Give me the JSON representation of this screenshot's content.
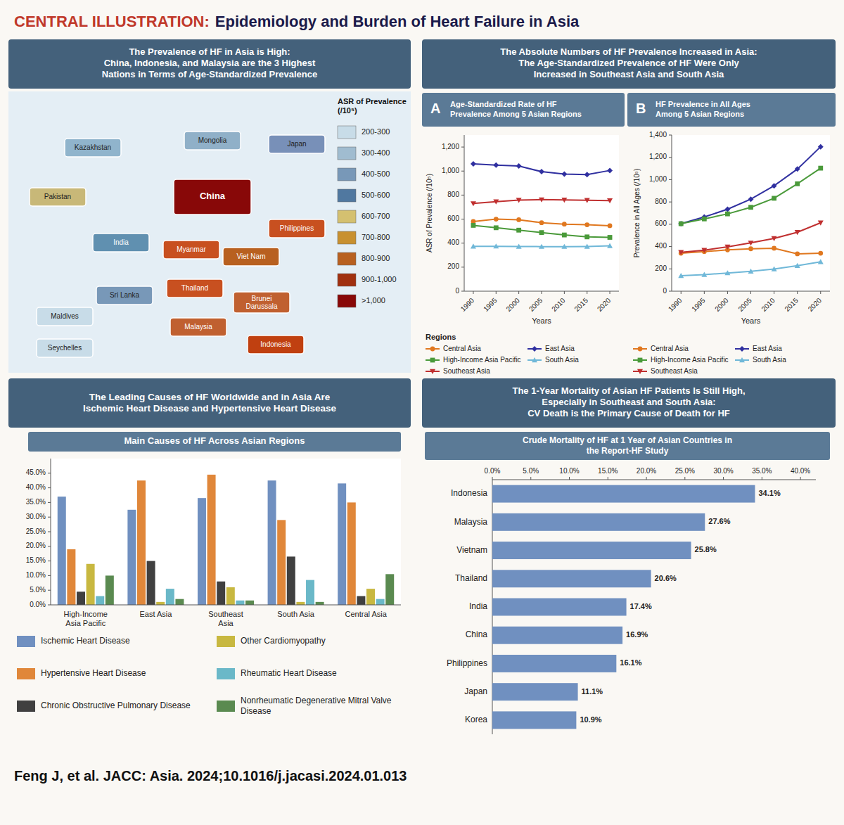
{
  "title": "CENTRAL ILLUSTRATION:",
  "subtitle": "Epidemiology and Burden of Heart Failure in Asia",
  "annotations": [
    "The Prevalence of HF in Asia is High:\nChina, Indonesia, and Malaysia are the 3 Highest\nNations in Terms of Age-Standardized Prevalence",
    "The Absolute Numbers of HF Prevalence Increased in Asia:\nThe Age-Standardized Prevalence of HF Were Only\nIncreased in Southeast Asia and South Asia",
    "The Leading Causes of HF Worldwide and in Asia Are\nIschemic Heart Disease and Hypertensive Heart Disease",
    "The 1-Year Mortality of Asian HF Patients Is Still High,\nEspecially in Southeast and South Asia:\nCV Death is the Primary Cause of Death for HF",
    "Feng J, et al. JACC: Asia. 2024;10.1016/j.jacasi.2024.01.013"
  ],
  "chart_data": [
    {
      "type": "map",
      "title": "ASR of Prevalence\n(/10⁵)",
      "categories": [
        "Kazakhstan",
        "Mongolia",
        "China",
        "India",
        "Pakistan",
        "Myanmar",
        "Thailand",
        "Viet Nam",
        "Philippines",
        "Sri Lanka",
        "Japan",
        "Malaysia",
        "Indonesia",
        "Brunei\nDarussala",
        "Seychelles",
        "Maldives"
      ],
      "colors": [
        "#90b4cc",
        "#90b0c8",
        "#880808",
        "#6090b0",
        "#c8b878",
        "#c85020",
        "#c85020",
        "#b86020",
        "#c85020",
        "#7898b8",
        "#7890b8",
        "#c06030",
        "#c04010",
        "#c06030",
        "#c8dce8",
        "#c8dce8"
      ],
      "series": [
        {
          "name": "200-300",
          "color": "#c8dce8"
        },
        {
          "name": "300-400",
          "color": "#a0bcd0"
        },
        {
          "name": "400-500",
          "color": "#7898b8"
        },
        {
          "name": "500-600",
          "color": "#5078a0"
        },
        {
          "name": "600-700",
          "color": "#d4c070"
        },
        {
          "name": "700-800",
          "color": "#c89030"
        },
        {
          "name": "800-900",
          "color": "#b86020"
        },
        {
          "name": "900-1,000",
          "color": "#a03010"
        },
        {
          "name": ">1,000",
          "color": "#880808"
        }
      ]
    },
    {
      "type": "line",
      "title": "Age-Standardized Rate of HF\nPrevalence Among 5 Asian Regions",
      "annotations": [
        "A",
        "Regions"
      ],
      "x": [
        1990,
        1995,
        2000,
        2005,
        2010,
        2015,
        2020
      ],
      "xlabel": "Years",
      "ylabel": "ASR of Prevalence (/10⁵)",
      "xlim": [
        1988,
        2022
      ],
      "xticks": [
        1990,
        1995,
        2000,
        2005,
        2010,
        2015,
        2020
      ],
      "ylim": [
        0,
        1300
      ],
      "yticks": [
        0,
        200,
        400,
        600,
        800,
        {
          "value": 1000,
          "label": "1,000"
        },
        {
          "value": 1200,
          "label": "1,200"
        }
      ],
      "grid": false,
      "series": [
        {
          "name": "Central Asia",
          "color": "#e07820",
          "marker": "circle",
          "values": [
            580,
            600,
            595,
            570,
            558,
            553,
            545
          ]
        },
        {
          "name": "East Asia",
          "color": "#3030a0",
          "marker": "diamond",
          "values": [
            1060,
            1050,
            1042,
            995,
            975,
            970,
            1005
          ]
        },
        {
          "name": "High-Income Asia Pacific",
          "color": "#4a9a3a",
          "marker": "square",
          "values": [
            548,
            528,
            508,
            488,
            468,
            452,
            448
          ]
        },
        {
          "name": "South Asia",
          "color": "#70b8d8",
          "marker": "triangle-up",
          "values": [
            373,
            374,
            372,
            371,
            371,
            372,
            377
          ]
        },
        {
          "name": "Southeast Asia",
          "color": "#c03030",
          "marker": "triangle-down",
          "values": [
            730,
            745,
            758,
            762,
            760,
            757,
            754
          ]
        }
      ]
    },
    {
      "type": "line",
      "title": "HF Prevalence in All Ages\nAmong 5 Asian Regions",
      "annotations": [
        "B"
      ],
      "x": [
        1990,
        1995,
        2000,
        2005,
        2010,
        2015,
        2020
      ],
      "xlabel": "Years",
      "ylabel": "Prevalence in All Ages (/10⁵)",
      "xlim": [
        1988,
        2022
      ],
      "xticks": [
        1990,
        1995,
        2000,
        2005,
        2010,
        2015,
        2020
      ],
      "ylim": [
        0,
        1400
      ],
      "yticks": [
        0,
        200,
        400,
        600,
        800,
        {
          "value": 1000,
          "label": "1,000"
        },
        {
          "value": 1200,
          "label": "1,200"
        },
        {
          "value": 1400,
          "label": "1,400"
        }
      ],
      "grid": false,
      "series": [
        {
          "name": "Central Asia",
          "color": "#e07820",
          "marker": "circle",
          "values": [
            340,
            355,
            370,
            380,
            385,
            335,
            340
          ]
        },
        {
          "name": "East Asia",
          "color": "#3030a0",
          "marker": "diamond",
          "values": [
            605,
            665,
            735,
            825,
            945,
            1095,
            1295
          ]
        },
        {
          "name": "High-Income Asia Pacific",
          "color": "#4a9a3a",
          "marker": "square",
          "values": [
            605,
            648,
            693,
            752,
            833,
            963,
            1103
          ]
        },
        {
          "name": "South Asia",
          "color": "#70b8d8",
          "marker": "triangle-up",
          "values": [
            138,
            148,
            163,
            178,
            198,
            228,
            263
          ]
        },
        {
          "name": "Southeast Asia",
          "color": "#c03030",
          "marker": "triangle-down",
          "values": [
            348,
            368,
            398,
            433,
            473,
            528,
            613
          ]
        }
      ]
    },
    {
      "type": "bar",
      "title": "Main Causes of HF Across Asian Regions",
      "categories": [
        "High-Income\nAsia Pacific",
        "East Asia",
        "Southeast\nAsia",
        "South Asia",
        "Central Asia"
      ],
      "ylim": [
        0,
        50
      ],
      "yticks": [
        {
          "value": 0,
          "label": "0.0%"
        },
        {
          "value": 5,
          "label": "5.0%"
        },
        {
          "value": 10,
          "label": "10.0%"
        },
        {
          "value": 15,
          "label": "15.0%"
        },
        {
          "value": 20,
          "label": "20.0%"
        },
        {
          "value": 25,
          "label": "25.0%"
        },
        {
          "value": 30,
          "label": "30.0%"
        },
        {
          "value": 35,
          "label": "35.0%"
        },
        {
          "value": 40,
          "label": "40.0%"
        },
        {
          "value": 45,
          "label": "45.0%"
        }
      ],
      "grid": false,
      "series": [
        {
          "name": "Ischemic Heart Disease",
          "color": "#7090c0",
          "values": [
            37.0,
            32.5,
            36.5,
            42.5,
            41.5
          ]
        },
        {
          "name": "Hypertensive Heart Disease",
          "color": "#e0873a",
          "values": [
            19.0,
            42.5,
            44.5,
            29.0,
            35.0
          ]
        },
        {
          "name": "Chronic Obstructive Pulmonary Disease",
          "color": "#404040",
          "values": [
            4.5,
            15.0,
            8.0,
            16.5,
            3.0
          ]
        },
        {
          "name": "Other Cardiomyopathy",
          "color": "#c8b840",
          "values": [
            14.0,
            1.0,
            6.0,
            1.0,
            5.5
          ]
        },
        {
          "name": "Rheumatic Heart Disease",
          "color": "#6ab8c8",
          "values": [
            3.0,
            5.5,
            1.5,
            8.5,
            2.0
          ]
        },
        {
          "name": "Nonrheumatic Degenerative Mitral Valve Disease",
          "color": "#5a8a50",
          "values": [
            10.0,
            2.0,
            1.5,
            1.0,
            10.5
          ]
        }
      ]
    },
    {
      "type": "bar",
      "orientation": "horizontal",
      "title": "Crude Mortality of HF at 1 Year of Asian Countries in\nthe Report-HF Study",
      "categories": [
        "Indonesia",
        "Malaysia",
        "Vietnam",
        "Thailand",
        "India",
        "China",
        "Philippines",
        "Japan",
        "Korea"
      ],
      "values": [
        34.1,
        27.6,
        25.8,
        20.6,
        17.4,
        16.9,
        16.1,
        11.1,
        10.9
      ],
      "value_labels": [
        "34.1%",
        "27.6%",
        "25.8%",
        "20.6%",
        "17.4%",
        "16.9%",
        "16.1%",
        "11.1%",
        "10.9%"
      ],
      "data_labels": true,
      "color": "#7090c0",
      "xlim": [
        0,
        42
      ],
      "xticks": [
        {
          "value": 0,
          "label": "0.0%"
        },
        {
          "value": 5,
          "label": "5.0%"
        },
        {
          "value": 10,
          "label": "10.0%"
        },
        {
          "value": 15,
          "label": "15.0%"
        },
        {
          "value": 20,
          "label": "20.0%"
        },
        {
          "value": 25,
          "label": "25.0%"
        },
        {
          "value": 30,
          "label": "30.0%"
        },
        {
          "value": 35,
          "label": "35.0%"
        },
        {
          "value": 40,
          "label": "40.0%"
        }
      ],
      "grid": false
    }
  ]
}
